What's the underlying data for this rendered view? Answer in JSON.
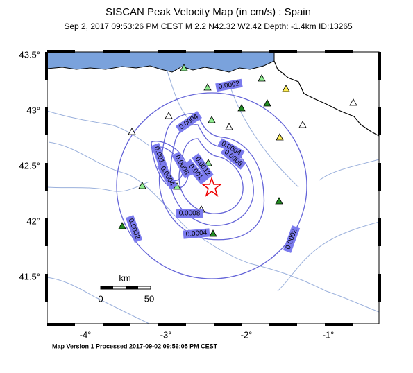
{
  "map": {
    "title": "SISCAN Peak Velocity Map (in cm/s) : Spain",
    "subtitle": "Sep  2, 2017 09:53:26 PM CEST   M 2.2   N42.32 W2.42   Depth: -1.4km   ID:13265",
    "lat_labels": [
      "43.5°",
      "43°",
      "42.5°",
      "42°",
      "41.5°"
    ],
    "lon_labels": [
      "-4°",
      "-3°",
      "-2°",
      "-1°"
    ],
    "contour_labels": [
      "0.0002",
      "0.0004",
      "0.0004",
      "0.0006",
      "0.0012",
      "0.0008",
      "0.001",
      "0.0012",
      "0.0004",
      "0.0008",
      "0.0004",
      "0.0002",
      "0.0002"
    ],
    "scale": {
      "unit": "km",
      "start": "0",
      "end": "50"
    },
    "footer": "Map Version 1 Processed 2017-09-02 09:56:05 PM CEST"
  }
}
